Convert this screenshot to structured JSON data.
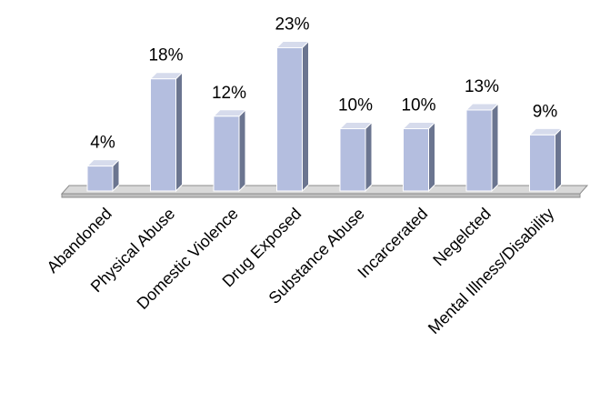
{
  "chart_data": {
    "type": "bar",
    "categories": [
      "Abandoned",
      "Physical Abuse",
      "Domestic Violence",
      "Drug Exposed",
      "Substance Abuse",
      "Incarcerated",
      "Negelcted",
      "Mental Illness/Disability"
    ],
    "values": [
      4,
      18,
      12,
      23,
      10,
      10,
      13,
      9
    ],
    "value_labels": [
      "4%",
      "18%",
      "12%",
      "23%",
      "10%",
      "10%",
      "13%",
      "9%"
    ],
    "title": "",
    "xlabel": "",
    "ylabel": "",
    "ylim": [
      0,
      25
    ],
    "grid": false,
    "legend": "none",
    "colors": {
      "bar_front": "#b4bedf",
      "bar_side": "#6b7590",
      "bar_top": "#d6dbec",
      "bar_edge": "#ffffff",
      "floor": "#d9d9d9",
      "floor_edge": "#8c8c8c"
    }
  }
}
